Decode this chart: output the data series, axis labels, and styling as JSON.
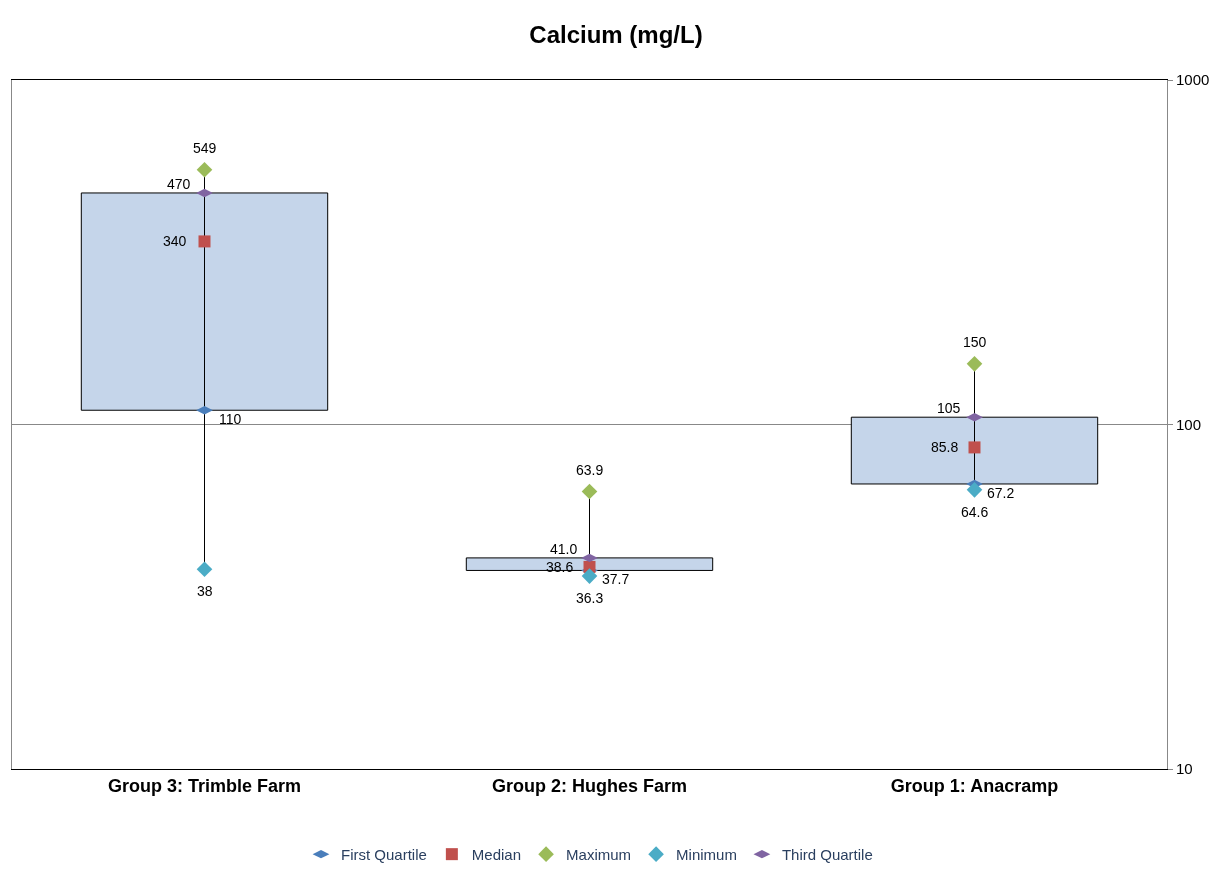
{
  "chart_data": {
    "type": "scatter",
    "title": "Calcium (mg/L)",
    "categories": [
      "Group 3: Trimble Farm",
      "Group 2: Hughes Farm",
      "Group 1: Anacramp"
    ],
    "series": [
      {
        "type": "bar",
        "color": "#c5d5ea",
        "base": [
          110,
          37.7,
          67.2
        ],
        "values": [
          360,
          3.3,
          37.8
        ]
      },
      {
        "name": "First Quartile",
        "type": "scatter",
        "color": "#4a7ebb",
        "values": [
          110,
          37.7,
          67.2
        ],
        "value_labels": [
          "110",
          "37.7",
          "67.2"
        ]
      },
      {
        "name": "Median",
        "type": "scatter",
        "marker": "square",
        "color": "#c0504d",
        "values": [
          340,
          38.6,
          85.8
        ],
        "value_labels": [
          "340",
          "38.6",
          "85.8"
        ]
      },
      {
        "name": "Maximum",
        "type": "scatter",
        "marker": "diamond",
        "color": "#9bbb59",
        "values": [
          549,
          63.9,
          150
        ],
        "value_labels": [
          "549",
          "63.9",
          "150"
        ]
      },
      {
        "name": "Minimum",
        "type": "scatter",
        "marker": "diamond",
        "color": "#4bacc6",
        "values": [
          38,
          36.3,
          64.6
        ],
        "value_labels": [
          "38",
          "36.3",
          "64.6"
        ]
      },
      {
        "name": "Third Quartile",
        "type": "scatter",
        "color": "#8064a2",
        "values": [
          470,
          41.0,
          105
        ],
        "value_labels": [
          "470",
          "41.0",
          "105"
        ]
      }
    ],
    "log": true,
    "ylim": [
      10,
      1000
    ],
    "yticks": [
      10,
      100,
      1000
    ],
    "grid": "y",
    "legend": "bottom"
  }
}
